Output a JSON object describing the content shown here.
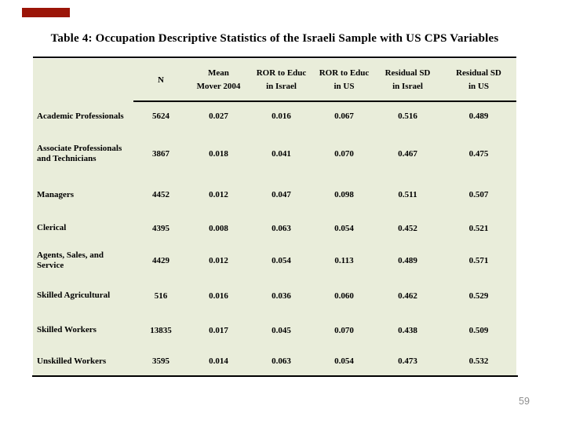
{
  "slide": {
    "title": "Table 4: Occupation Descriptive Statistics of the Israeli Sample with US CPS Variables",
    "page_number": "59"
  },
  "accent_bar": {
    "color": "#9b1508"
  },
  "table": {
    "background_color": "#e9edda",
    "rule_color": "#000000",
    "header": [
      {
        "lines": [
          "N"
        ]
      },
      {
        "lines": [
          "Mean",
          "Mover 2004"
        ]
      },
      {
        "lines": [
          "ROR to Educ",
          "in Israel"
        ]
      },
      {
        "lines": [
          "ROR to Educ",
          "in US"
        ]
      },
      {
        "lines": [
          "Residual SD",
          "in Israel"
        ]
      },
      {
        "lines": [
          "Residual SD",
          "in US"
        ]
      }
    ],
    "rows": [
      {
        "label_lines": [
          "Academic Professionals",
          ""
        ],
        "values": [
          "5624",
          "0.027",
          "0.016",
          "0.067",
          "0.516",
          "0.489"
        ]
      },
      {
        "label_lines": [
          "Associate Professionals",
          "and Technicians"
        ],
        "values": [
          "3867",
          "0.018",
          "0.041",
          "0.070",
          "0.467",
          "0.475"
        ]
      },
      {
        "label_lines": [
          "Managers",
          ""
        ],
        "values": [
          "4452",
          "0.012",
          "0.047",
          "0.098",
          "0.511",
          "0.507"
        ]
      },
      {
        "label_lines": [
          "Clerical",
          ""
        ],
        "values": [
          "4395",
          "0.008",
          "0.063",
          "0.054",
          "0.452",
          "0.521"
        ]
      },
      {
        "label_lines": [
          "Agents, Sales, and",
          "Service"
        ],
        "values": [
          "4429",
          "0.012",
          "0.054",
          "0.113",
          "0.489",
          "0.571"
        ]
      },
      {
        "label_lines": [
          "Skilled Agricultural",
          ""
        ],
        "values": [
          "516",
          "0.016",
          "0.036",
          "0.060",
          "0.462",
          "0.529"
        ]
      },
      {
        "label_lines": [
          "Skilled Workers",
          ""
        ],
        "values": [
          "13835",
          "0.017",
          "0.045",
          "0.070",
          "0.438",
          "0.509"
        ]
      },
      {
        "label_lines": [
          "Unskilled Workers",
          ""
        ],
        "values": [
          "3595",
          "0.014",
          "0.063",
          "0.054",
          "0.473",
          "0.532"
        ]
      }
    ]
  }
}
